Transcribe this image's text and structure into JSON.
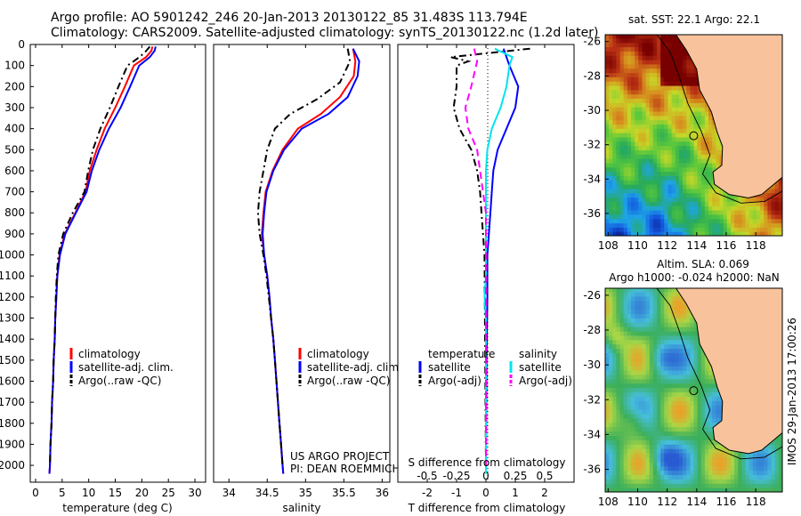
{
  "header": {
    "title_line1": "Argo profile: AO 5901242_246 20-Jan-2013 20130122_85 31.483S 113.794E",
    "title_line2": "Climatology: CARS2009. Satellite-adjusted climatology: synTS_20130122.nc (1.2d later)"
  },
  "colors": {
    "climatology": "#ff0000",
    "satellite": "#0000ff",
    "argo": "#000000",
    "sat_salinity": "#00e5ee",
    "argo_salinity": "#ff00ff",
    "land": "#f8c39c"
  },
  "chart_data": [
    {
      "id": "temperature",
      "type": "line",
      "xlabel": "temperature (deg C)",
      "xlim": [
        -1,
        32
      ],
      "xticks": [
        0,
        5,
        10,
        15,
        20,
        25,
        30
      ],
      "ylim": [
        2080,
        0
      ],
      "yticks": [
        0,
        100,
        200,
        300,
        400,
        500,
        600,
        700,
        800,
        900,
        1000,
        1100,
        1200,
        1300,
        1400,
        1500,
        1600,
        1700,
        1800,
        1900,
        2000
      ],
      "legend": [
        "climatology",
        "satellite-adj. clim.",
        "Argo(..raw -QC)"
      ],
      "series": [
        {
          "name": "climatology",
          "color": "#ff0000",
          "dash": "",
          "points": [
            [
              22.0,
              10
            ],
            [
              21.8,
              30
            ],
            [
              20.8,
              60
            ],
            [
              18.5,
              100
            ],
            [
              16.8,
              200
            ],
            [
              15.0,
              300
            ],
            [
              13.0,
              400
            ],
            [
              11.5,
              500
            ],
            [
              10.2,
              600
            ],
            [
              9.4,
              700
            ],
            [
              7.5,
              800
            ],
            [
              5.5,
              900
            ],
            [
              4.5,
              1000
            ],
            [
              4.1,
              1100
            ],
            [
              3.9,
              1200
            ],
            [
              3.7,
              1300
            ],
            [
              3.6,
              1400
            ],
            [
              3.4,
              1500
            ],
            [
              3.3,
              1600
            ],
            [
              3.1,
              1700
            ],
            [
              3.0,
              1800
            ],
            [
              2.8,
              1900
            ],
            [
              2.7,
              2000
            ],
            [
              2.6,
              2040
            ]
          ]
        },
        {
          "name": "satellite-adj. clim.",
          "color": "#0000ff",
          "dash": "",
          "points": [
            [
              22.6,
              10
            ],
            [
              22.4,
              30
            ],
            [
              21.5,
              60
            ],
            [
              19.5,
              100
            ],
            [
              17.8,
              200
            ],
            [
              16.0,
              300
            ],
            [
              13.8,
              400
            ],
            [
              12.0,
              500
            ],
            [
              10.6,
              600
            ],
            [
              9.6,
              700
            ],
            [
              7.6,
              800
            ],
            [
              5.6,
              900
            ],
            [
              4.6,
              1000
            ],
            [
              4.1,
              1100
            ],
            [
              3.9,
              1200
            ],
            [
              3.7,
              1300
            ],
            [
              3.6,
              1400
            ],
            [
              3.4,
              1500
            ],
            [
              3.3,
              1600
            ],
            [
              3.1,
              1700
            ],
            [
              3.0,
              1800
            ],
            [
              2.8,
              1900
            ],
            [
              2.7,
              2000
            ],
            [
              2.6,
              2040
            ]
          ]
        },
        {
          "name": "Argo(..raw -QC)",
          "color": "#000000",
          "dash": "8,4,2,4",
          "points": [
            [
              21.5,
              10
            ],
            [
              20.5,
              40
            ],
            [
              19.0,
              70
            ],
            [
              17.3,
              100
            ],
            [
              15.6,
              200
            ],
            [
              14.0,
              300
            ],
            [
              12.2,
              400
            ],
            [
              10.8,
              500
            ],
            [
              9.9,
              600
            ],
            [
              9.2,
              700
            ],
            [
              7.0,
              800
            ],
            [
              5.2,
              900
            ],
            [
              4.3,
              1000
            ],
            [
              4.0,
              1100
            ],
            [
              3.8,
              1200
            ],
            [
              3.7,
              1300
            ],
            [
              3.6,
              1400
            ],
            [
              3.4,
              1500
            ],
            [
              3.3,
              1600
            ],
            [
              3.1,
              1700
            ],
            [
              3.0,
              1800
            ],
            [
              2.8,
              1900
            ],
            [
              2.7,
              2000
            ]
          ]
        }
      ]
    },
    {
      "id": "salinity",
      "type": "line",
      "xlabel": "salinity",
      "xlim": [
        33.8,
        36.1
      ],
      "xticks": [
        34,
        34.5,
        35,
        35.5,
        36
      ],
      "ylim": [
        2080,
        0
      ],
      "legend": [
        "climatology",
        "satellite-adj. clim.",
        "Argo(..raw -QC)"
      ],
      "annotation": [
        "US ARGO PROJECT",
        "PI: DEAN ROEMMICH"
      ],
      "series": [
        {
          "name": "climatology",
          "color": "#ff0000",
          "dash": "",
          "points": [
            [
              35.62,
              20
            ],
            [
              35.65,
              80
            ],
            [
              35.63,
              150
            ],
            [
              35.45,
              250
            ],
            [
              35.2,
              330
            ],
            [
              34.9,
              400
            ],
            [
              34.7,
              500
            ],
            [
              34.57,
              600
            ],
            [
              34.48,
              700
            ],
            [
              34.45,
              800
            ],
            [
              34.43,
              900
            ],
            [
              34.46,
              1000
            ],
            [
              34.5,
              1100
            ],
            [
              34.53,
              1200
            ],
            [
              34.55,
              1300
            ],
            [
              34.58,
              1400
            ],
            [
              34.6,
              1500
            ],
            [
              34.62,
              1600
            ],
            [
              34.64,
              1700
            ],
            [
              34.66,
              1800
            ],
            [
              34.68,
              1900
            ],
            [
              34.7,
              2000
            ],
            [
              34.71,
              2040
            ]
          ]
        },
        {
          "name": "satellite-adj. clim.",
          "color": "#0000ff",
          "dash": "",
          "points": [
            [
              35.62,
              20
            ],
            [
              35.7,
              80
            ],
            [
              35.68,
              150
            ],
            [
              35.55,
              250
            ],
            [
              35.3,
              330
            ],
            [
              34.95,
              400
            ],
            [
              34.72,
              500
            ],
            [
              34.58,
              600
            ],
            [
              34.49,
              700
            ],
            [
              34.46,
              800
            ],
            [
              34.44,
              900
            ],
            [
              34.46,
              1000
            ],
            [
              34.5,
              1100
            ],
            [
              34.53,
              1200
            ],
            [
              34.55,
              1300
            ],
            [
              34.58,
              1400
            ],
            [
              34.6,
              1500
            ],
            [
              34.62,
              1600
            ],
            [
              34.64,
              1700
            ],
            [
              34.66,
              1800
            ],
            [
              34.68,
              1900
            ],
            [
              34.7,
              2000
            ],
            [
              34.71,
              2040
            ]
          ]
        },
        {
          "name": "Argo(..raw -QC)",
          "color": "#000000",
          "dash": "8,4,2,4",
          "points": [
            [
              35.55,
              20
            ],
            [
              35.58,
              80
            ],
            [
              35.45,
              180
            ],
            [
              35.15,
              260
            ],
            [
              34.8,
              330
            ],
            [
              34.6,
              400
            ],
            [
              34.5,
              500
            ],
            [
              34.45,
              600
            ],
            [
              34.4,
              700
            ],
            [
              34.38,
              800
            ],
            [
              34.4,
              900
            ],
            [
              34.45,
              1000
            ],
            [
              34.49,
              1100
            ],
            [
              34.52,
              1200
            ],
            [
              34.55,
              1300
            ],
            [
              34.58,
              1400
            ],
            [
              34.6,
              1500
            ],
            [
              34.62,
              1600
            ],
            [
              34.64,
              1700
            ],
            [
              34.66,
              1800
            ],
            [
              34.68,
              1900
            ],
            [
              34.7,
              2000
            ]
          ]
        }
      ]
    },
    {
      "id": "difference",
      "type": "line",
      "xlabel": "T difference from climatology",
      "top_label": "S difference from climatology",
      "xlim": [
        -3,
        3
      ],
      "xticks": [
        -2,
        -1,
        0,
        1,
        2
      ],
      "s_ticks": [
        {
          "label": "-0.5",
          "at": -2
        },
        {
          "label": "-0.25",
          "at": -1
        },
        {
          "label": "0",
          "at": 0
        },
        {
          "label": "0.25",
          "at": 1
        },
        {
          "label": "0.5",
          "at": 2
        }
      ],
      "ylim": [
        2080,
        0
      ],
      "legend_headers": [
        "temperature",
        "salinity"
      ],
      "legend": [
        "satellite",
        "Argo(-adj)",
        "satellite",
        "Argo(-adj)"
      ],
      "series": [
        {
          "name": "satellite",
          "color": "#0000ff",
          "dash": "",
          "points": [
            [
              0.6,
              20
            ],
            [
              0.7,
              60
            ],
            [
              0.8,
              100
            ],
            [
              1.1,
              200
            ],
            [
              1.0,
              300
            ],
            [
              0.7,
              400
            ],
            [
              0.4,
              500
            ],
            [
              0.25,
              600
            ],
            [
              0.2,
              700
            ],
            [
              0.15,
              800
            ],
            [
              0.1,
              900
            ],
            [
              0.05,
              1000
            ],
            [
              0.05,
              1200
            ],
            [
              0.02,
              1500
            ],
            [
              0.0,
              2040
            ]
          ]
        },
        {
          "name": "Argo(-adj)",
          "color": "#000000",
          "dash": "8,4,2,4",
          "points": [
            [
              1.5,
              20
            ],
            [
              -1.2,
              60
            ],
            [
              -0.6,
              80
            ],
            [
              -1.0,
              100
            ],
            [
              -1.0,
              200
            ],
            [
              -1.1,
              300
            ],
            [
              -0.9,
              400
            ],
            [
              -0.5,
              500
            ],
            [
              -0.3,
              600
            ],
            [
              -0.2,
              700
            ],
            [
              -0.15,
              800
            ],
            [
              -0.1,
              900
            ],
            [
              -0.05,
              1000
            ],
            [
              0.0,
              2000
            ]
          ]
        },
        {
          "name": "satellite",
          "color": "#00e5ee",
          "dash": "",
          "points": [
            [
              0.3,
              20
            ],
            [
              0.9,
              60
            ],
            [
              0.8,
              100
            ],
            [
              0.7,
              200
            ],
            [
              0.5,
              300
            ],
            [
              0.2,
              400
            ],
            [
              0.05,
              500
            ],
            [
              0.0,
              600
            ],
            [
              0.0,
              1100
            ],
            [
              -0.05,
              1200
            ],
            [
              0.0,
              1300
            ],
            [
              0.0,
              2040
            ]
          ]
        },
        {
          "name": "Argo(-adj)",
          "color": "#ff00ff",
          "dash": "8,5",
          "points": [
            [
              -0.4,
              20
            ],
            [
              -0.3,
              80
            ],
            [
              -0.5,
              200
            ],
            [
              -0.7,
              300
            ],
            [
              -0.6,
              400
            ],
            [
              -0.3,
              500
            ],
            [
              -0.2,
              600
            ],
            [
              -0.1,
              700
            ],
            [
              0.0,
              800
            ],
            [
              0.0,
              2000
            ]
          ]
        }
      ]
    },
    {
      "id": "sst_map",
      "type": "heatmap",
      "title": "sat. SST: 22.1  Argo: 22.1",
      "xticks": [
        108,
        110,
        112,
        114,
        116,
        118
      ],
      "yticks": [
        -26,
        -28,
        -30,
        -32,
        -34,
        -36
      ],
      "xlim": [
        107.8,
        119.8
      ],
      "ylim": [
        -37.3,
        -25.6
      ],
      "argo_position": [
        113.794,
        -31.483
      ]
    },
    {
      "id": "sla_map",
      "type": "heatmap",
      "title_line1": "Altim. SLA: 0.069",
      "title_line2": "Argo h1000: -0.024 h2000: NaN",
      "xticks": [
        108,
        110,
        112,
        114,
        116,
        118
      ],
      "yticks": [
        -26,
        -28,
        -30,
        -32,
        -34,
        -36
      ],
      "xlim": [
        107.8,
        119.8
      ],
      "ylim": [
        -37.3,
        -25.6
      ],
      "argo_position": [
        113.794,
        -31.483
      ],
      "side_label": "IMOS 29-Jan-2013 17:00:26"
    }
  ]
}
